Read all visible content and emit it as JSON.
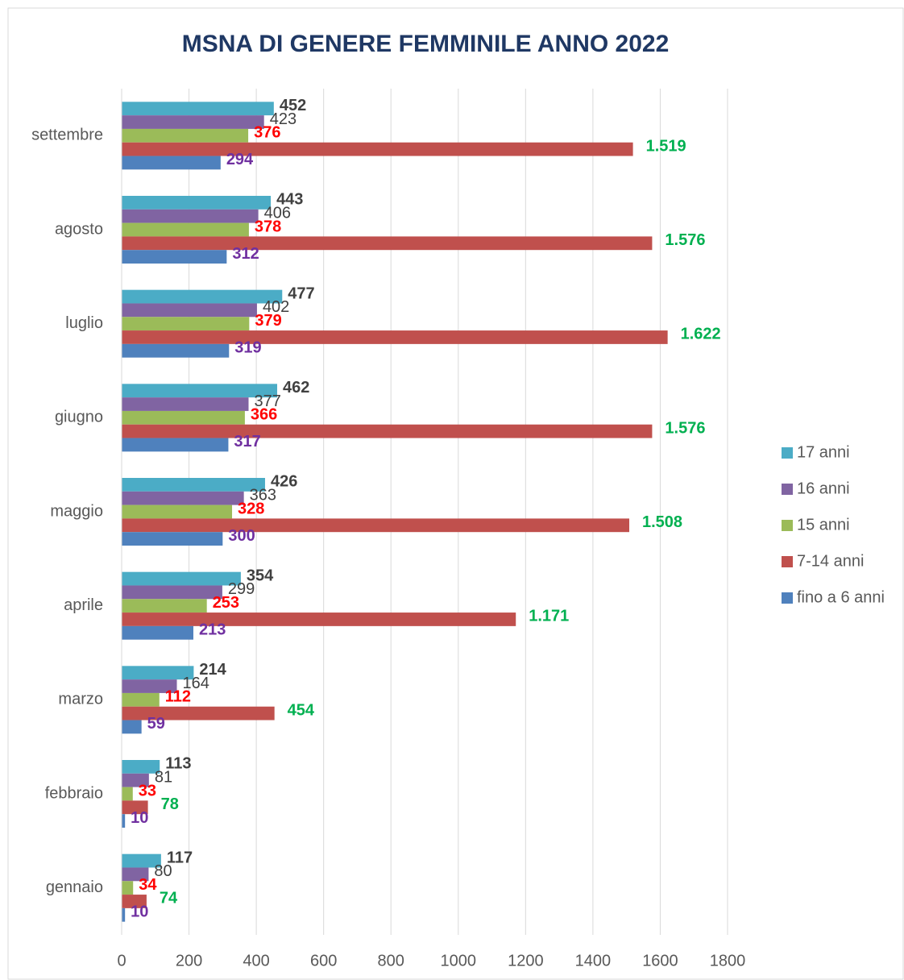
{
  "chart_data": {
    "type": "bar",
    "orientation": "horizontal",
    "title": "MSNA DI GENERE FEMMINILE ANNO 2022",
    "categories": [
      "gennaio",
      "febbraio",
      "marzo",
      "aprile",
      "maggio",
      "giugno",
      "luglio",
      "agosto",
      "settembre"
    ],
    "series": [
      {
        "name": "17 anni",
        "color": "#4bacc6",
        "label_color": "#404040",
        "label_bold": true,
        "values": [
          117,
          113,
          214,
          354,
          426,
          462,
          477,
          443,
          452
        ]
      },
      {
        "name": "16 anni",
        "color": "#8064a2",
        "label_color": "#404040",
        "label_bold": false,
        "values": [
          80,
          81,
          164,
          299,
          363,
          377,
          402,
          406,
          423
        ]
      },
      {
        "name": "15 anni",
        "color": "#9bbb59",
        "label_color": "#ff0000",
        "label_bold": true,
        "values": [
          34,
          33,
          112,
          253,
          328,
          366,
          379,
          378,
          376
        ]
      },
      {
        "name": "7-14 anni",
        "color": "#c0504d",
        "label_color": "#00b050",
        "label_bold": true,
        "values": [
          74,
          78,
          454,
          1171,
          1508,
          1576,
          1622,
          1576,
          1519
        ],
        "value_labels": [
          "74",
          "78",
          "454",
          "1.171",
          "1.508",
          "1.576",
          "1.622",
          "1.576",
          "1.519"
        ]
      },
      {
        "name": "fino a 6 anni",
        "color": "#4f81bd",
        "label_color": "#7030a0",
        "label_bold": true,
        "values": [
          10,
          10,
          59,
          213,
          300,
          317,
          319,
          312,
          294
        ]
      }
    ],
    "xlim": [
      0,
      1800
    ],
    "xticks": [
      0,
      200,
      400,
      600,
      800,
      1000,
      1200,
      1400,
      1600,
      1800
    ],
    "grid": true,
    "legend": "right"
  }
}
